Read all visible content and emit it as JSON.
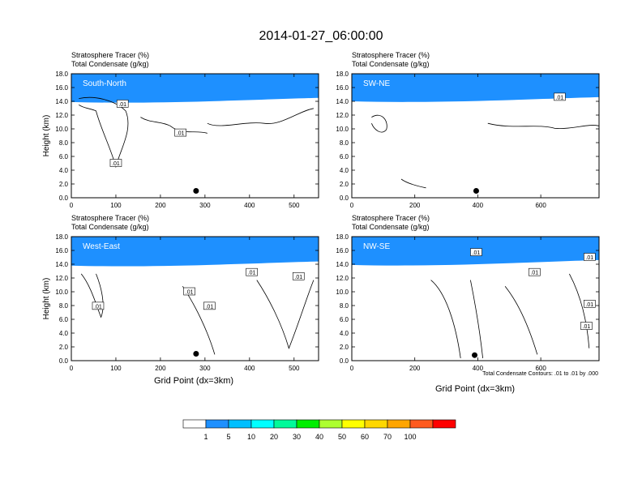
{
  "figure": {
    "title": "2014-01-27_06:00:00",
    "xlabel": "Grid Point (dx=3km)",
    "contour_note": "Total Condensate Contours: .01 to .01 by .000"
  },
  "colorbar": {
    "colors": [
      "#ffffff",
      "#1e90ff",
      "#00bfff",
      "#00ffff",
      "#00fa9a",
      "#00ee00",
      "#adff2f",
      "#ffff00",
      "#ffd700",
      "#ffa500",
      "#ff5a1e",
      "#ff0000"
    ],
    "labels": [
      "1",
      "5",
      "10",
      "20",
      "30",
      "40",
      "50",
      "60",
      "70",
      "100"
    ]
  },
  "chart_data": [
    {
      "type": "heatmap",
      "name": "South-North",
      "subtitle_1": "Stratosphere Tracer   (%)",
      "subtitle_2": "Total Condensate   (g/kg)",
      "ylabel": "Height (km)",
      "xlim": [
        0,
        555
      ],
      "ylim": [
        0,
        18
      ],
      "xticks": [
        0,
        100,
        200,
        300,
        400,
        500
      ],
      "yticks": [
        "0.0",
        "2.0",
        "4.0",
        "6.0",
        "8.0",
        "10.0",
        "12.0",
        "14.0",
        "16.0",
        "18.0"
      ],
      "tracer_layers_km": {
        "100": [
          17.2,
          17.0
        ],
        "70": [
          16.4,
          16.6
        ],
        "50": [
          15.9,
          16.1
        ],
        "20": [
          15.3,
          15.5
        ],
        "5": [
          14.6,
          14.9
        ],
        "1": [
          13.9,
          14.5
        ]
      },
      "contour_labels": [
        ".01",
        ".01",
        ".01"
      ],
      "contour_label_points": [
        [
          115,
          13.6
        ],
        [
          100,
          5.0
        ],
        [
          245,
          9.4
        ]
      ],
      "marker": [
        280,
        1.0
      ]
    },
    {
      "type": "heatmap",
      "name": "SW-NE",
      "subtitle_1": "Stratosphere Tracer   (%)",
      "subtitle_2": "Total Condensate   (g/kg)",
      "ylabel": "",
      "xlim": [
        0,
        785
      ],
      "ylim": [
        0,
        18
      ],
      "xticks": [
        0,
        200,
        400,
        600
      ],
      "yticks": [
        "0.0",
        "2.0",
        "4.0",
        "6.0",
        "8.0",
        "10.0",
        "12.0",
        "14.0",
        "16.0",
        "18.0"
      ],
      "tracer_layers_km": {
        "100": [
          17.3,
          17.1
        ],
        "70": [
          16.5,
          16.7
        ],
        "50": [
          16.0,
          16.2
        ],
        "20": [
          15.4,
          15.6
        ],
        "5": [
          14.7,
          15.0
        ],
        "1": [
          14.0,
          14.6
        ]
      },
      "contour_labels": [
        ".01"
      ],
      "contour_label_points": [
        [
          660,
          14.6
        ]
      ],
      "marker": [
        395,
        1.0
      ]
    },
    {
      "type": "heatmap",
      "name": "West-East",
      "subtitle_1": "Stratosphere Tracer   (%)",
      "subtitle_2": "Total Condensate   (g/kg)",
      "ylabel": "Height (km)",
      "xlim": [
        0,
        555
      ],
      "ylim": [
        0,
        18
      ],
      "xticks": [
        0,
        100,
        200,
        300,
        400,
        500
      ],
      "yticks": [
        "0.0",
        "2.0",
        "4.0",
        "6.0",
        "8.0",
        "10.0",
        "12.0",
        "14.0",
        "16.0",
        "18.0"
      ],
      "tracer_layers_km": {
        "100": [
          17.2,
          17.0
        ],
        "70": [
          16.4,
          16.6
        ],
        "50": [
          15.9,
          16.1
        ],
        "20": [
          15.3,
          15.5
        ],
        "5": [
          14.6,
          14.9
        ],
        "1": [
          13.8,
          14.4
        ]
      },
      "contour_labels": [
        ".01",
        ".01",
        ".01",
        ".01",
        ".01"
      ],
      "contour_label_points": [
        [
          60,
          7.9
        ],
        [
          265,
          10.0
        ],
        [
          310,
          7.9
        ],
        [
          405,
          12.8
        ],
        [
          510,
          12.2
        ]
      ],
      "marker": [
        280,
        1.0
      ]
    },
    {
      "type": "heatmap",
      "name": "NW-SE",
      "subtitle_1": "Stratosphere Tracer   (%)",
      "subtitle_2": "Total Condensate   (g/kg)",
      "ylabel": "",
      "xlim": [
        0,
        785
      ],
      "ylim": [
        0,
        18
      ],
      "xticks": [
        0,
        200,
        400,
        600
      ],
      "yticks": [
        "0.0",
        "2.0",
        "4.0",
        "6.0",
        "8.0",
        "10.0",
        "12.0",
        "14.0",
        "16.0",
        "18.0"
      ],
      "tracer_layers_km": {
        "100": [
          17.3,
          17.1
        ],
        "70": [
          16.5,
          16.7
        ],
        "50": [
          16.0,
          16.2
        ],
        "20": [
          15.4,
          15.6
        ],
        "5": [
          14.7,
          15.0
        ],
        "1": [
          13.9,
          14.6
        ]
      },
      "contour_labels": [
        ".01",
        ".01",
        ".01",
        ".01",
        ".01"
      ],
      "contour_label_points": [
        [
          395,
          15.7
        ],
        [
          580,
          12.8
        ],
        [
          755,
          15.0
        ],
        [
          755,
          8.2
        ],
        [
          745,
          5.0
        ]
      ],
      "marker": [
        390,
        0.8
      ]
    }
  ]
}
